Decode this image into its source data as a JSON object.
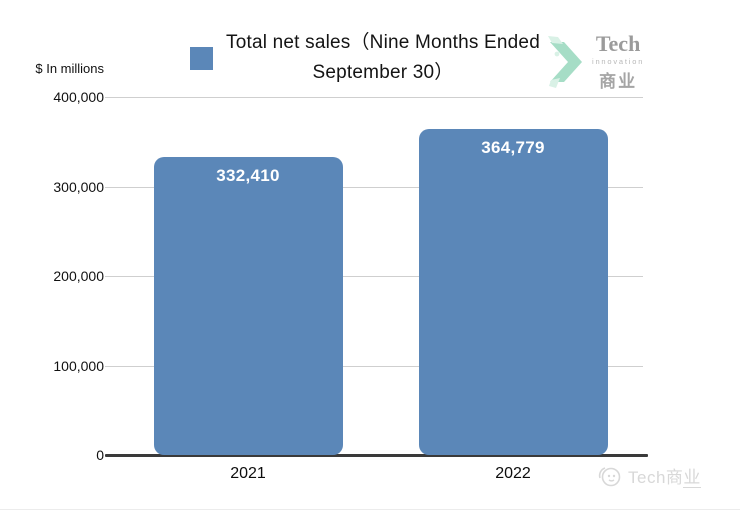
{
  "chart_data": {
    "type": "bar",
    "title_line1": "Total net sales（Nine Months Ended",
    "title_line2": "September 30）",
    "unit_label": "$ In millions",
    "categories": [
      "2021",
      "2022"
    ],
    "values": [
      332410,
      364779
    ],
    "value_labels": [
      "332,410",
      "364,779"
    ],
    "ylim": [
      0,
      400000
    ],
    "yticks": [
      0,
      100000,
      200000,
      300000,
      400000
    ],
    "ytick_labels": [
      "0",
      "100,000",
      "200,000",
      "300,000",
      "400,000"
    ],
    "grid": true,
    "legend_position": "top",
    "bar_color": "#5b87b8",
    "gridline_color": "#cfcfcf",
    "axis_color": "#3a3a3a"
  },
  "logo": {
    "brand": "Tech",
    "subtitle": "innovation",
    "cn": "商业"
  },
  "watermark": {
    "text_main": "Tech商",
    "text_underlined": "业"
  }
}
